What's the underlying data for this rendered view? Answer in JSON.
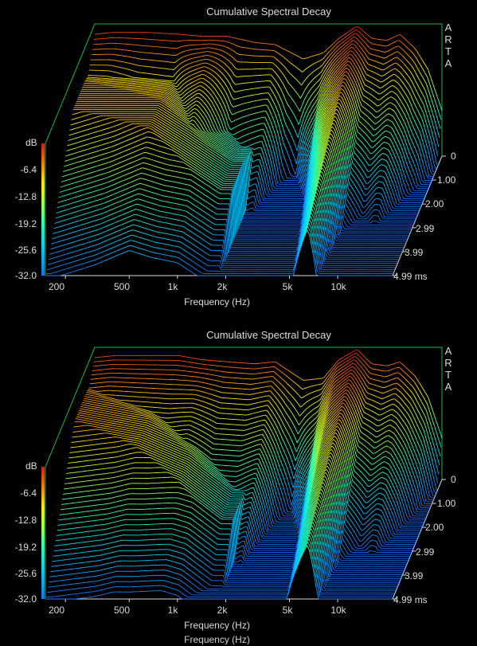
{
  "chart_data": [
    {
      "type": "waterfall",
      "title": "Cumulative Spectral Decay",
      "brand": [
        "A",
        "R",
        "T",
        "A"
      ],
      "xlabel": "Frequency (Hz)",
      "zlabel": "dB",
      "x_scale": "log",
      "xlim": [
        150,
        22000
      ],
      "x_ticks": [
        {
          "label": "200",
          "value": 200
        },
        {
          "label": "500",
          "value": 500
        },
        {
          "label": "1k",
          "value": 1000
        },
        {
          "label": "2k",
          "value": 2000
        },
        {
          "label": "5k",
          "value": 5000
        },
        {
          "label": "10k",
          "value": 10000
        }
      ],
      "zlim": [
        -32.0,
        0
      ],
      "z_ticks": [
        "-6.4",
        "-12.8",
        "-19.2",
        "-25.6",
        "-32.0"
      ],
      "t_unit": "ms",
      "t_ticks": [
        {
          "label": "0",
          "value": 0
        },
        {
          "label": "1.00",
          "value": 1.0
        },
        {
          "label": "2.00",
          "value": 2.0
        },
        {
          "label": "2.99",
          "value": 2.99
        },
        {
          "label": "3.99",
          "value": 3.99
        },
        {
          "label": "4.99 ms",
          "value": 4.99
        }
      ],
      "slices": 60,
      "response_db": [
        [
          150,
          -2.5
        ],
        [
          200,
          -2.0
        ],
        [
          300,
          -2.0
        ],
        [
          500,
          -2.5
        ],
        [
          700,
          -3.0
        ],
        [
          1000,
          -3.0
        ],
        [
          1500,
          -4.5
        ],
        [
          2000,
          -5.0
        ],
        [
          3000,
          -8.5
        ],
        [
          4000,
          -7.0
        ],
        [
          5000,
          -3.5
        ],
        [
          6500,
          -0.5
        ],
        [
          8000,
          -3.5
        ],
        [
          10000,
          -4.0
        ],
        [
          12000,
          -2.5
        ],
        [
          15000,
          -6.0
        ],
        [
          18000,
          -11.0
        ],
        [
          22000,
          -21.0
        ]
      ],
      "decay_ms": [
        [
          150,
          0.9
        ],
        [
          200,
          0.8
        ],
        [
          300,
          0.6
        ],
        [
          500,
          0.55
        ],
        [
          700,
          1.3
        ],
        [
          800,
          1.6
        ],
        [
          1000,
          0.9
        ],
        [
          1200,
          0.5
        ],
        [
          1500,
          0.6
        ],
        [
          2000,
          0.7
        ],
        [
          2500,
          0.35
        ],
        [
          3000,
          0.25
        ],
        [
          4000,
          0.6
        ],
        [
          5000,
          1.2
        ],
        [
          6500,
          2.0
        ],
        [
          8000,
          0.9
        ],
        [
          10000,
          0.7
        ],
        [
          13000,
          0.8
        ],
        [
          16000,
          0.6
        ],
        [
          20000,
          0.5
        ],
        [
          22000,
          0.4
        ]
      ],
      "ridge_db": [
        [
          500,
          -8.0
        ],
        [
          800,
          -13.0
        ],
        [
          1500,
          -20.0
        ]
      ],
      "ridge_ms": [
        [
          150,
          2.2
        ],
        [
          300,
          2.6
        ],
        [
          500,
          3.0
        ],
        [
          700,
          3.2
        ],
        [
          1000,
          3.5
        ]
      ]
    },
    {
      "type": "waterfall",
      "title": "Cumulative Spectral Decay",
      "brand": [
        "A",
        "R",
        "T",
        "A"
      ],
      "xlabel": "Frequency (Hz)",
      "zlabel": "dB",
      "x_scale": "log",
      "xlim": [
        150,
        22000
      ],
      "x_ticks": [
        {
          "label": "200",
          "value": 200
        },
        {
          "label": "500",
          "value": 500
        },
        {
          "label": "1k",
          "value": 1000
        },
        {
          "label": "2k",
          "value": 2000
        },
        {
          "label": "5k",
          "value": 5000
        },
        {
          "label": "10k",
          "value": 10000
        }
      ],
      "zlim": [
        -32.0,
        0
      ],
      "z_ticks": [
        "-6.4",
        "-12.8",
        "-19.2",
        "-25.6",
        "-32.0"
      ],
      "t_unit": "ms",
      "t_ticks": [
        {
          "label": "0",
          "value": 0
        },
        {
          "label": "1.00",
          "value": 1.0
        },
        {
          "label": "2.00",
          "value": 2.0
        },
        {
          "label": "2.99",
          "value": 2.99
        },
        {
          "label": "3.99",
          "value": 3.99
        },
        {
          "label": "4.99 ms",
          "value": 4.99
        }
      ],
      "slices": 60,
      "response_db": [
        [
          150,
          -2.5
        ],
        [
          200,
          -2.0
        ],
        [
          300,
          -2.0
        ],
        [
          500,
          -2.0
        ],
        [
          700,
          -3.0
        ],
        [
          1000,
          -3.5
        ],
        [
          1500,
          -4.0
        ],
        [
          2000,
          -3.5
        ],
        [
          3000,
          -8.0
        ],
        [
          4000,
          -7.5
        ],
        [
          5000,
          -3.0
        ],
        [
          6500,
          -0.5
        ],
        [
          8000,
          -4.0
        ],
        [
          10000,
          -4.5
        ],
        [
          12000,
          -3.5
        ],
        [
          15000,
          -7.0
        ],
        [
          18000,
          -12.0
        ],
        [
          22000,
          -22.0
        ]
      ],
      "decay_ms": [
        [
          150,
          1.2
        ],
        [
          200,
          1.2
        ],
        [
          300,
          1.1
        ],
        [
          500,
          1.0
        ],
        [
          700,
          1.2
        ],
        [
          1000,
          0.9
        ],
        [
          1500,
          0.9
        ],
        [
          2000,
          1.0
        ],
        [
          2500,
          0.6
        ],
        [
          3000,
          0.4
        ],
        [
          4000,
          0.8
        ],
        [
          5000,
          1.5
        ],
        [
          6500,
          2.2
        ],
        [
          8000,
          1.0
        ],
        [
          10000,
          0.8
        ],
        [
          13000,
          0.9
        ],
        [
          16000,
          0.7
        ],
        [
          20000,
          0.5
        ],
        [
          22000,
          0.4
        ]
      ],
      "ridge_db": [
        [
          150,
          -6.0
        ],
        [
          400,
          -9.0
        ],
        [
          800,
          -14.0
        ],
        [
          1500,
          -22.0
        ]
      ],
      "ridge_ms": [
        [
          150,
          2.0
        ],
        [
          300,
          2.4
        ],
        [
          500,
          2.8
        ],
        [
          700,
          3.1
        ],
        [
          1000,
          3.4
        ]
      ]
    }
  ],
  "footer_fragment": "Frequency (Hz)"
}
